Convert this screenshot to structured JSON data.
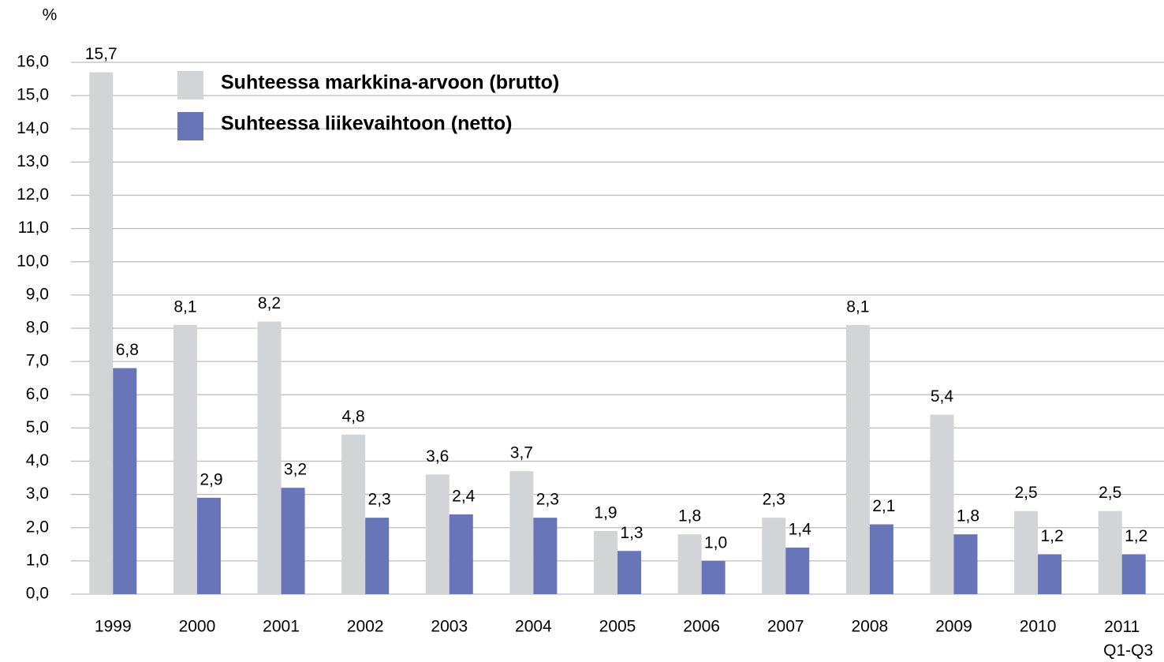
{
  "chart_data": {
    "type": "bar",
    "y_label": "%",
    "categories": [
      "1999",
      "2000",
      "2001",
      "2002",
      "2003",
      "2004",
      "2005",
      "2006",
      "2007",
      "2008",
      "2009",
      "2010",
      "2011 Q1-Q3"
    ],
    "series": [
      {
        "name": "Suhteessa markkina-arvoon (brutto)",
        "color": "#d3d4d5",
        "values": [
          15.7,
          8.1,
          8.2,
          4.8,
          3.6,
          3.7,
          1.9,
          1.8,
          2.3,
          8.1,
          5.4,
          2.5,
          2.5
        ],
        "value_labels": [
          "15,7",
          "8,1",
          "8,2",
          "4,8",
          "3,6",
          "3,7",
          "1,9",
          "1,8",
          "2,3",
          "8,1",
          "5,4",
          "2,5",
          "2,5"
        ]
      },
      {
        "name": "Suhteessa liikevaihtoon (netto)",
        "color": "#6876b9",
        "values": [
          6.8,
          2.9,
          3.2,
          2.3,
          2.4,
          2.3,
          1.3,
          1.0,
          1.4,
          2.1,
          1.8,
          1.2,
          1.2
        ],
        "value_labels": [
          "6,8",
          "2,9",
          "3,2",
          "2,3",
          "2,4",
          "2,3",
          "1,3",
          "1,0",
          "1,4",
          "2,1",
          "1,8",
          "1,2",
          "1,2"
        ]
      }
    ],
    "ylim": [
      0,
      16
    ],
    "yticks": [
      {
        "value": 0,
        "label": "0,0"
      },
      {
        "value": 1,
        "label": "1,0"
      },
      {
        "value": 2,
        "label": "2,0"
      },
      {
        "value": 3,
        "label": "3,0"
      },
      {
        "value": 4,
        "label": "4,0"
      },
      {
        "value": 5,
        "label": "5,0"
      },
      {
        "value": 6,
        "label": "6,0"
      },
      {
        "value": 7,
        "label": "7,0"
      },
      {
        "value": 8,
        "label": "8,0"
      },
      {
        "value": 9,
        "label": "9,0"
      },
      {
        "value": 10,
        "label": "10,0"
      },
      {
        "value": 11,
        "label": "11,0"
      },
      {
        "value": 12,
        "label": "12,0"
      },
      {
        "value": 13,
        "label": "13,0"
      },
      {
        "value": 14,
        "label": "14,0"
      },
      {
        "value": 15,
        "label": "15,0"
      },
      {
        "value": 16,
        "label": "16,0"
      }
    ],
    "grid": true,
    "legend": "top-left"
  }
}
